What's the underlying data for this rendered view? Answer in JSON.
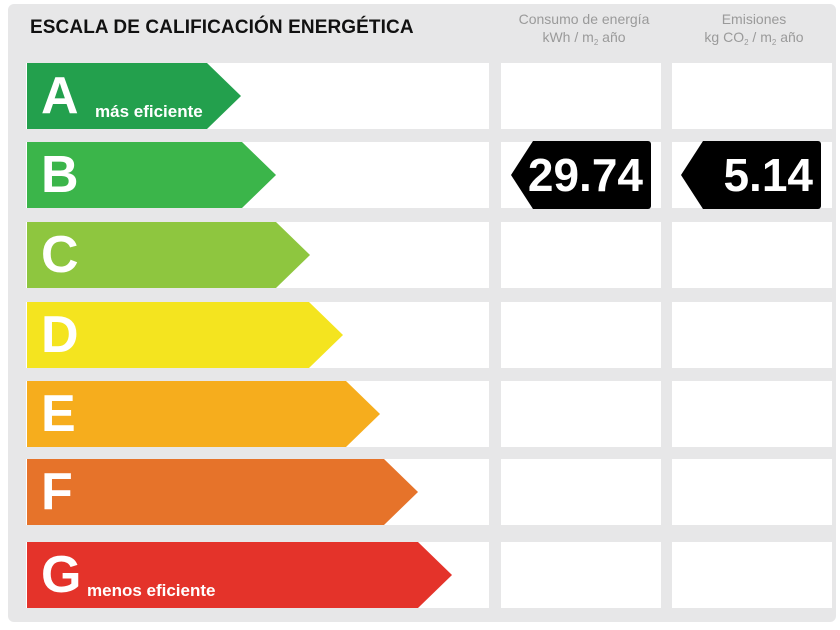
{
  "header": {
    "title": "ESCALA DE CALIFICACIÓN ENERGÉTICA",
    "energy_col": {
      "line1": "Consumo de energía",
      "line2_a": "kWh / m",
      "line2_sub": "2",
      "line2_b": " año"
    },
    "emissions_col": {
      "line1": "Emisiones",
      "line2_a": "kg CO",
      "line2_sub": "2",
      "line2_b": " / m",
      "line2_sub2": "2",
      "line2_c": " año"
    }
  },
  "ratings": [
    {
      "letter": "A",
      "label": "más eficiente",
      "color": "#23a04d"
    },
    {
      "letter": "B",
      "label": "",
      "color": "#3bb54a"
    },
    {
      "letter": "C",
      "label": "",
      "color": "#8ec63f"
    },
    {
      "letter": "D",
      "label": "",
      "color": "#f4e41f"
    },
    {
      "letter": "E",
      "label": "",
      "color": "#f6ad1d"
    },
    {
      "letter": "F",
      "label": "",
      "color": "#e6732a"
    },
    {
      "letter": "G",
      "label": "menos eficiente",
      "color": "#e4332a"
    }
  ],
  "result": {
    "rating_row": "B",
    "energy_value": "29.74",
    "emissions_value": "5.14"
  }
}
